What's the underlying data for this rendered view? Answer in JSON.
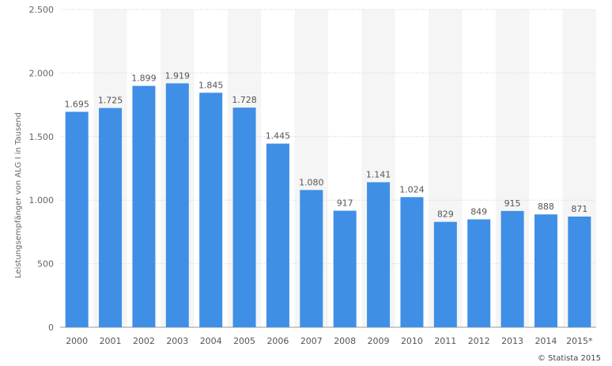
{
  "chart_data": {
    "type": "bar",
    "categories": [
      "2000",
      "2001",
      "2002",
      "2003",
      "2004",
      "2005",
      "2006",
      "2007",
      "2008",
      "2009",
      "2010",
      "2011",
      "2012",
      "2013",
      "2014",
      "2015*"
    ],
    "values": [
      1695,
      1725,
      1899,
      1919,
      1845,
      1728,
      1445,
      1080,
      917,
      1141,
      1024,
      829,
      849,
      915,
      888,
      871
    ],
    "value_labels": [
      "1.695",
      "1.725",
      "1.899",
      "1.919",
      "1.845",
      "1.728",
      "1.445",
      "1.080",
      "917",
      "1.141",
      "1.024",
      "829",
      "849",
      "915",
      "888",
      "871"
    ],
    "ylabel": "Leistungsempfänger von ALG I in Tausend",
    "xlabel": "",
    "ylim": [
      0,
      2500
    ],
    "yticks": [
      0,
      500,
      1000,
      1500,
      2000,
      2500
    ],
    "ytick_labels": [
      "0",
      "500",
      "1.000",
      "1.500",
      "2.000",
      "2.500"
    ],
    "grid": true,
    "colors": {
      "bar": "#3f8fe6",
      "band": "#f5f5f5",
      "grid": "#cfcfcf"
    }
  },
  "credit": "© Statista 2015"
}
